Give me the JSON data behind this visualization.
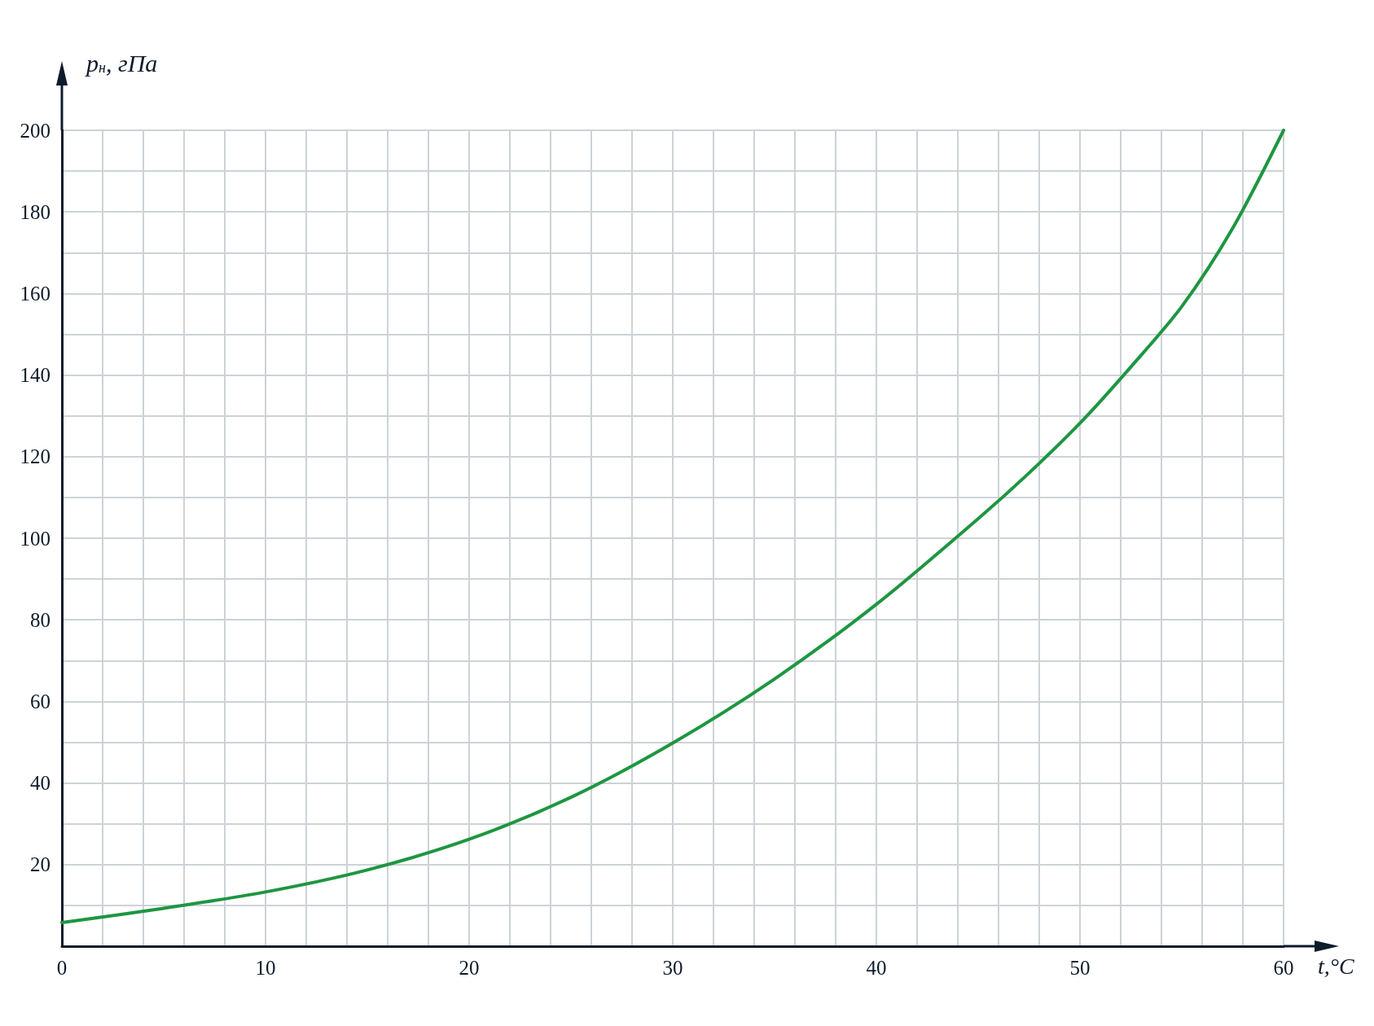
{
  "chart_data": {
    "type": "line",
    "xlabel": "t,°C",
    "ylabel": "p$_{н}$, гПа",
    "color": "#1e9641",
    "x": [
      0,
      5,
      10,
      15,
      20,
      25,
      30,
      35,
      40,
      45,
      47.5,
      50,
      52.5,
      55,
      57.5,
      60
    ],
    "values": [
      5.8,
      9.3,
      13.3,
      18.7,
      26.2,
      36.5,
      49.8,
      65.5,
      83.8,
      104.8,
      116,
      128.2,
      142,
      156.8,
      176,
      200
    ],
    "xlim": [
      0,
      60
    ],
    "ylim": [
      0,
      200
    ],
    "xticks": [
      0,
      {
        "value": 2,
        "label": null
      },
      {
        "value": 4,
        "label": null
      },
      {
        "value": 6,
        "label": null
      },
      {
        "value": 8,
        "label": null
      },
      10,
      {
        "value": 12,
        "label": null
      },
      {
        "value": 14,
        "label": null
      },
      {
        "value": 16,
        "label": null
      },
      {
        "value": 18,
        "label": null
      },
      20,
      {
        "value": 22,
        "label": null
      },
      {
        "value": 24,
        "label": null
      },
      {
        "value": 26,
        "label": null
      },
      {
        "value": 28,
        "label": null
      },
      30,
      {
        "value": 32,
        "label": null
      },
      {
        "value": 34,
        "label": null
      },
      {
        "value": 36,
        "label": null
      },
      {
        "value": 38,
        "label": null
      },
      40,
      {
        "value": 42,
        "label": null
      },
      {
        "value": 44,
        "label": null
      },
      {
        "value": 46,
        "label": null
      },
      {
        "value": 48,
        "label": null
      },
      50,
      {
        "value": 52,
        "label": null
      },
      {
        "value": 54,
        "label": null
      },
      {
        "value": 56,
        "label": null
      },
      {
        "value": 58,
        "label": null
      },
      60
    ],
    "yticks": [
      {
        "value": 0,
        "label": null
      },
      {
        "value": 10,
        "label": null
      },
      20,
      {
        "value": 30,
        "label": null
      },
      40,
      {
        "value": 50,
        "label": null
      },
      60,
      {
        "value": 70,
        "label": null
      },
      80,
      {
        "value": 90,
        "label": null
      },
      100,
      {
        "value": 110,
        "label": null
      },
      120,
      {
        "value": 130,
        "label": null
      },
      140,
      {
        "value": 150,
        "label": null
      },
      160,
      {
        "value": 170,
        "label": null
      },
      180,
      {
        "value": 190,
        "label": null
      },
      200
    ],
    "grid": true,
    "marker": "none",
    "line_style": "solid"
  }
}
